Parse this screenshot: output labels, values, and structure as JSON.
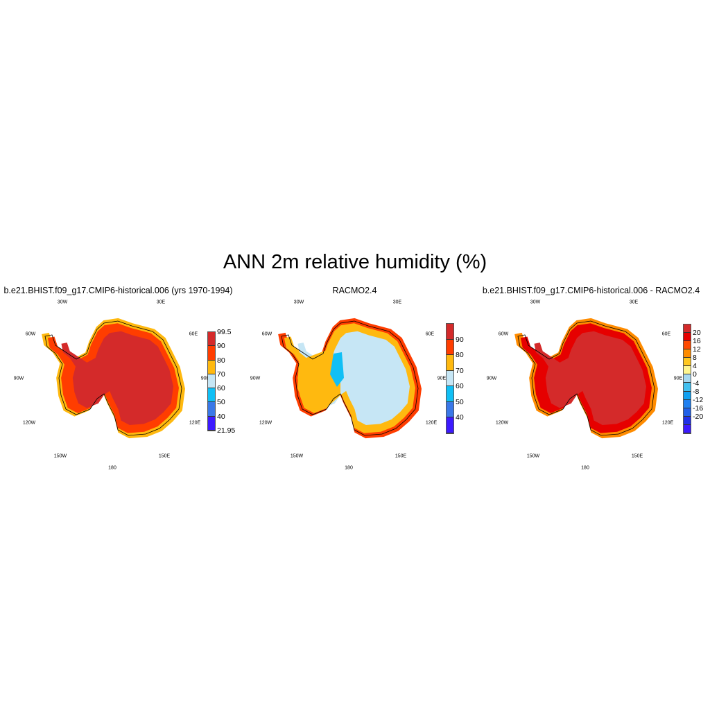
{
  "title": "ANN 2m relative humidity (%)",
  "chart_data": [
    {
      "type": "map",
      "projection": "south polar stereographic",
      "title": "b.e21.BHIST.f09_g17.CMIP6-historical.006 (yrs 1970-1994)",
      "lon_labels": [
        "30W",
        "30E",
        "60W",
        "60E",
        "90W",
        "90E",
        "120W",
        "120E",
        "150W",
        "150E",
        "180"
      ],
      "colorbar": {
        "labels": [
          "99.5",
          "90",
          "80",
          "70",
          "60",
          "50",
          "40",
          "21.95"
        ],
        "colors": [
          "#d42a2a",
          "#ff3d00",
          "#ffb90f",
          "#c6e6f5",
          "#10bff5",
          "#3a78e8",
          "#3c1aff"
        ]
      },
      "fill": {
        "interior": "#d42a2a",
        "edge": "#ff3d00",
        "coast": "#ffb90f"
      }
    },
    {
      "type": "map",
      "projection": "south polar stereographic",
      "title": "RACMO2.4",
      "lon_labels": [
        "30W",
        "30E",
        "60W",
        "60E",
        "90W",
        "90E",
        "120W",
        "120E",
        "150W",
        "150E",
        "180"
      ],
      "colorbar": {
        "labels": [
          "",
          "90",
          "80",
          "70",
          "60",
          "50",
          "40",
          ""
        ],
        "colors": [
          "#d42a2a",
          "#ff3d00",
          "#ffb90f",
          "#c6e6f5",
          "#10bff5",
          "#3a78e8",
          "#3c1aff"
        ]
      },
      "fill": {
        "interior": "#c6e6f5",
        "edge": "#ffb90f",
        "coast": "#ff3d00"
      }
    },
    {
      "type": "map",
      "projection": "south polar stereographic",
      "title": "b.e21.BHIST.f09_g17.CMIP6-historical.006 - RACMO2.4",
      "lon_labels": [
        "30W",
        "30E",
        "60W",
        "60E",
        "90W",
        "90E",
        "120W",
        "120E",
        "150W",
        "150E",
        "180"
      ],
      "colorbar": {
        "labels": [
          "",
          "20",
          "16",
          "12",
          "8",
          "4",
          "0",
          "-4",
          "-8",
          "-12",
          "-16",
          "-20",
          ""
        ],
        "colors": [
          "#d42a2a",
          "#e60000",
          "#ff4a00",
          "#ff8c00",
          "#ffc820",
          "#fff68f",
          "#a6d8f0",
          "#40c0f0",
          "#10a0f0",
          "#2080f0",
          "#2060e8",
          "#2030e8",
          "#3c1aff"
        ]
      },
      "fill": {
        "interior": "#d42a2a",
        "edge": "#e60000",
        "coast": "#ff8c00"
      }
    }
  ]
}
